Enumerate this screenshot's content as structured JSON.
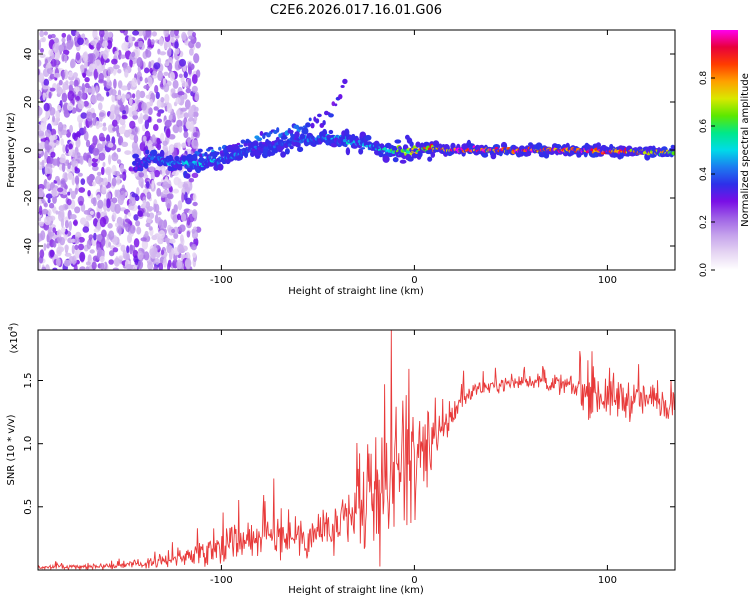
{
  "figure_title": "C2E6.2026.017.16.01.G06",
  "colors": {
    "snr_line": "#e83a3a",
    "axis": "#000000",
    "cmap_stops": [
      "#ffffff",
      "#e6d6f3",
      "#c6a4ec",
      "#a063e6",
      "#7a0fe6",
      "#2e2fe9",
      "#1c7cf0",
      "#00dbe8",
      "#00e88a",
      "#5de800",
      "#d9e800",
      "#ffa000",
      "#ff3c00",
      "#e8003c",
      "#ff00ee"
    ]
  },
  "chart_data": [
    {
      "id": "spectrogram",
      "type": "heatmap",
      "xlabel": "Height of straight line (km)",
      "ylabel": "Frequency (Hz)",
      "xlim": [
        -195,
        135
      ],
      "ylim": [
        -50,
        50
      ],
      "x_ticks": [
        -100,
        0,
        100
      ],
      "x_tick_labels": [
        "-100",
        "0",
        "100"
      ],
      "y_ticks": [
        -40,
        -20,
        0,
        20,
        40
      ],
      "y_tick_labels": [
        "-40",
        "-20",
        "0",
        "20",
        "40"
      ],
      "colorbar": {
        "label": "Normalized spectral amplitude",
        "range": [
          0,
          1
        ],
        "ticks": [
          0.0,
          0.2,
          0.4,
          0.6,
          0.8
        ],
        "tick_labels": [
          "0.0",
          "0.2",
          "0.4",
          "0.6",
          "0.8"
        ]
      },
      "ridge": {
        "x": [
          -145,
          -135,
          -125,
          -115,
          -100,
          -80,
          -60,
          -45,
          -35,
          -25,
          -18,
          -10,
          0,
          10,
          20,
          50,
          80,
          110,
          135
        ],
        "freq": [
          -8,
          -3,
          -5,
          -6,
          -4,
          1,
          4,
          5,
          4,
          2,
          0,
          -1,
          0,
          0.5,
          0,
          0,
          0,
          -0.5,
          -1
        ],
        "amplitude": [
          0.25,
          0.5,
          0.45,
          0.5,
          0.45,
          0.4,
          0.4,
          0.45,
          0.5,
          0.45,
          0.5,
          0.6,
          0.7,
          0.9,
          0.95,
          0.95,
          0.95,
          0.9,
          0.7
        ]
      },
      "upper_branch": {
        "x": [
          -120,
          -100,
          -80,
          -60,
          -50,
          -45,
          -40,
          -35
        ],
        "freq": [
          -4,
          0,
          5,
          9,
          12,
          15,
          20,
          30
        ]
      },
      "noise_region_x": [
        -195,
        -120
      ]
    },
    {
      "id": "snr",
      "type": "line",
      "xlabel": "Height of straight line (km)",
      "ylabel": "SNR (10 * v/v)",
      "y_scale_label": "(x10",
      "y_scale_exp": "4",
      "xlim": [
        -195,
        135
      ],
      "ylim": [
        0,
        1.9
      ],
      "x_ticks": [
        -100,
        0,
        100
      ],
      "x_tick_labels": [
        "-100",
        "0",
        "100"
      ],
      "y_ticks": [
        0.5,
        1.0,
        1.5
      ],
      "y_tick_labels": [
        "0.5",
        "1.0",
        "1.5"
      ],
      "envelope": {
        "x": [
          -195,
          -160,
          -140,
          -120,
          -110,
          -100,
          -80,
          -60,
          -40,
          -30,
          -20,
          -15,
          -10,
          -5,
          0,
          5,
          10,
          15,
          20,
          25,
          30,
          40,
          50,
          60,
          70,
          80,
          90,
          100,
          110,
          120,
          135
        ],
        "mean": [
          0.02,
          0.03,
          0.05,
          0.1,
          0.15,
          0.2,
          0.27,
          0.27,
          0.32,
          0.42,
          0.55,
          0.7,
          0.8,
          0.85,
          0.85,
          0.95,
          1.0,
          1.1,
          1.25,
          1.35,
          1.42,
          1.46,
          1.48,
          1.5,
          1.48,
          1.45,
          1.4,
          1.38,
          1.35,
          1.35,
          1.33
        ],
        "spread": [
          0.015,
          0.02,
          0.03,
          0.06,
          0.1,
          0.14,
          0.14,
          0.16,
          0.2,
          0.3,
          0.4,
          0.45,
          0.45,
          0.4,
          0.35,
          0.3,
          0.25,
          0.18,
          0.12,
          0.08,
          0.06,
          0.05,
          0.05,
          0.05,
          0.06,
          0.1,
          0.15,
          0.18,
          0.15,
          0.12,
          0.12
        ]
      },
      "peak": {
        "x": -12,
        "y": 1.9
      }
    }
  ]
}
